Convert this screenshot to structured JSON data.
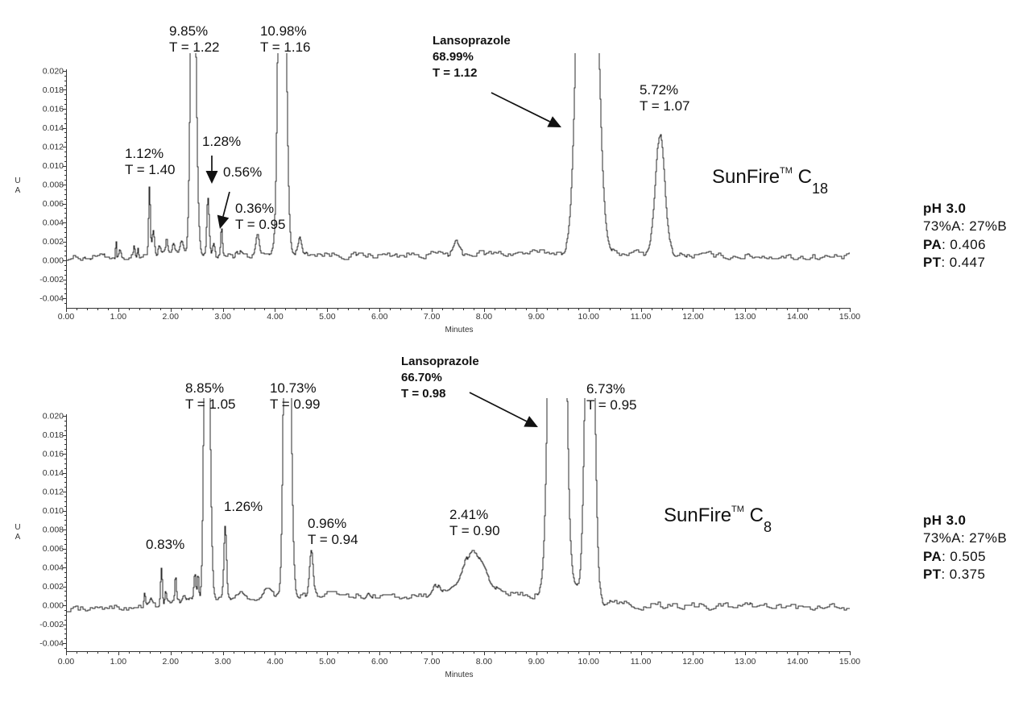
{
  "chart_data": [
    {
      "type": "line",
      "title": "SunFire™ C18",
      "title_parts": {
        "name": "SunFire",
        "tm": "TM",
        "phase": "C",
        "phase_sub": "18"
      },
      "conditions": [
        {
          "bold": "pH 3.0",
          "text": ""
        },
        {
          "bold": "",
          "text": "73%A: 27%B"
        },
        {
          "bold": "PA",
          "text": ": 0.406"
        },
        {
          "bold": "PT",
          "text": ": 0.447"
        }
      ],
      "xlabel": "Minutes",
      "ylabel": "AU",
      "ylabel_lines": [
        "U",
        "A"
      ],
      "xlim": [
        0,
        15
      ],
      "ylim": [
        -0.005,
        0.02
      ],
      "grid": false,
      "legend": null,
      "x_ticks": [
        0,
        1,
        2,
        3,
        4,
        5,
        6,
        7,
        8,
        9,
        10,
        11,
        12,
        13,
        14,
        15
      ],
      "x_tick_labels": [
        "0.00",
        "1.00",
        "2.00",
        "3.00",
        "4.00",
        "5.00",
        "6.00",
        "7.00",
        "8.00",
        "9.00",
        "10.00",
        "11.00",
        "12.00",
        "13.00",
        "14.00",
        "15.00"
      ],
      "y_ticks": [
        -0.004,
        -0.002,
        0.0,
        0.002,
        0.004,
        0.006,
        0.008,
        0.01,
        0.012,
        0.014,
        0.016,
        0.018,
        0.02
      ],
      "y_tick_labels": [
        "-0.004",
        "-0.002",
        "0.000",
        "0.002",
        "0.004",
        "0.006",
        "0.008",
        "0.010",
        "0.012",
        "0.014",
        "0.016",
        "0.018",
        "0.020"
      ],
      "labeled_peaks": [
        {
          "name": "",
          "rt": 1.6,
          "area_pct": "1.12%",
          "tailing": "1.40"
        },
        {
          "name": "",
          "rt": 2.42,
          "area_pct": "9.85%",
          "tailing": "1.22"
        },
        {
          "name": "",
          "rt": 2.71,
          "area_pct": "1.28%",
          "tailing": null
        },
        {
          "name": "",
          "rt": 2.97,
          "area_pct": "0.56%",
          "tailing": null
        },
        {
          "name": "",
          "rt": 3.66,
          "area_pct": "0.36%",
          "tailing": "0.95"
        },
        {
          "name": "",
          "rt": 4.12,
          "area_pct": "10.98%",
          "tailing": "1.16"
        },
        {
          "name": "Lansoprazole",
          "rt": 9.96,
          "area_pct": "68.99%",
          "tailing": "1.12"
        },
        {
          "name": "",
          "rt": 11.36,
          "area_pct": "5.72%",
          "tailing": "1.07"
        }
      ],
      "baseline": [
        [
          0,
          0.0003
        ],
        [
          0.9,
          0.0004
        ],
        [
          1.5,
          0.0004
        ],
        [
          2.2,
          0.0007
        ],
        [
          3.2,
          0.0004
        ],
        [
          3.8,
          0.0006
        ],
        [
          4.6,
          0.0008
        ],
        [
          5.5,
          0.0005
        ],
        [
          6.5,
          0.0006
        ],
        [
          8.0,
          0.0007
        ],
        [
          9.3,
          0.0008
        ],
        [
          10.5,
          0.0008
        ],
        [
          12.0,
          0.0005
        ],
        [
          15.0,
          0.0003
        ]
      ],
      "peaks": [
        {
          "t": 0.95,
          "h": 0.0024,
          "w": 0.008
        },
        {
          "t": 1.02,
          "h": 0.0006,
          "w": 0.02
        },
        {
          "t": 1.3,
          "h": 0.0012,
          "w": 0.012
        },
        {
          "t": 1.37,
          "h": 0.001,
          "w": 0.012
        },
        {
          "t": 1.59,
          "h": 0.0074,
          "w": 0.016
        },
        {
          "t": 1.66,
          "h": 0.0028,
          "w": 0.025
        },
        {
          "t": 1.78,
          "h": 0.0008,
          "w": 0.02
        },
        {
          "t": 1.92,
          "h": 0.0016,
          "w": 0.018
        },
        {
          "t": 2.05,
          "h": 0.0008,
          "w": 0.02
        },
        {
          "t": 2.21,
          "h": 0.0012,
          "w": 0.03
        },
        {
          "t": 2.42,
          "h": 0.04,
          "w": 0.042,
          "tail": 1.3
        },
        {
          "t": 2.71,
          "h": 0.0058,
          "w": 0.022
        },
        {
          "t": 2.82,
          "h": 0.0012,
          "w": 0.02
        },
        {
          "t": 2.97,
          "h": 0.003,
          "w": 0.016
        },
        {
          "t": 3.3,
          "h": 0.0005,
          "w": 0.05
        },
        {
          "t": 3.66,
          "h": 0.0022,
          "w": 0.03
        },
        {
          "t": 4.12,
          "h": 0.06,
          "w": 0.055,
          "tail": 1.2
        },
        {
          "t": 4.47,
          "h": 0.0016,
          "w": 0.03
        },
        {
          "t": 7.47,
          "h": 0.0011,
          "w": 0.05
        },
        {
          "t": 9.96,
          "h": 0.085,
          "w": 0.13,
          "tail": 1.1
        },
        {
          "t": 11.36,
          "h": 0.0127,
          "w": 0.085,
          "tail": 1.1
        }
      ],
      "annotations": [
        {
          "lines": [
            "9.85%",
            "T = 1.22"
          ],
          "x": 1.973,
          "y": 0.02502,
          "style": "normal"
        },
        {
          "lines": [
            "10.98%",
            "T = 1.16"
          ],
          "x": 3.715,
          "y": 0.02502,
          "style": "normal"
        },
        {
          "lines": [
            "Lansoprazole",
            "68.99%",
            "T = 1.12"
          ],
          "x": 7.014,
          "y": 0.024,
          "style": "bold"
        },
        {
          "lines": [
            "5.72%",
            "T = 1.07"
          ],
          "x": 10.976,
          "y": 0.01881,
          "style": "normal"
        },
        {
          "lines": [
            "1.12%",
            "T = 1.40"
          ],
          "x": 1.125,
          "y": 0.01209,
          "style": "normal"
        },
        {
          "lines": [
            "1.28%"
          ],
          "x": 2.605,
          "y": 0.01336,
          "style": "normal"
        },
        {
          "lines": [
            "0.56%"
          ],
          "x": 3.006,
          "y": 0.01013,
          "style": "normal"
        },
        {
          "lines": [
            "0.36%",
            "T = 0.95"
          ],
          "x": 3.237,
          "y": 0.0063,
          "style": "normal"
        }
      ],
      "arrows": [
        {
          "from": [
            8.139,
            0.0177
          ],
          "to": [
            9.481,
            0.01404
          ]
        },
        {
          "from": [
            2.79,
            0.01106
          ],
          "to": [
            2.79,
            0.00809
          ]
        },
        {
          "from": [
            3.129,
            0.00723
          ],
          "to": [
            2.944,
            0.00332
          ]
        }
      ]
    },
    {
      "type": "line",
      "title": "SunFire™ C8",
      "title_parts": {
        "name": "SunFire",
        "tm": "TM",
        "phase": "C",
        "phase_sub": "8"
      },
      "conditions": [
        {
          "bold": "pH 3.0",
          "text": ""
        },
        {
          "bold": "",
          "text": "73%A: 27%B"
        },
        {
          "bold": "PA",
          "text": ": 0.505"
        },
        {
          "bold": "PT",
          "text": ": 0.375"
        }
      ],
      "xlabel": "Minutes",
      "ylabel": "AU",
      "ylabel_lines": [
        "U",
        "A"
      ],
      "xlim": [
        0,
        15
      ],
      "ylim": [
        -0.005,
        0.02
      ],
      "grid": false,
      "legend": null,
      "x_ticks": [
        0,
        1,
        2,
        3,
        4,
        5,
        6,
        7,
        8,
        9,
        10,
        11,
        12,
        13,
        14,
        15
      ],
      "x_tick_labels": [
        "0.00",
        "1.00",
        "2.00",
        "3.00",
        "4.00",
        "5.00",
        "6.00",
        "7.00",
        "8.00",
        "9.00",
        "10.00",
        "11.00",
        "12.00",
        "13.00",
        "14.00",
        "15.00"
      ],
      "y_ticks": [
        -0.004,
        -0.002,
        0.0,
        0.002,
        0.004,
        0.006,
        0.008,
        0.01,
        0.012,
        0.014,
        0.016,
        0.018,
        0.02
      ],
      "y_tick_labels": [
        "-0.004",
        "-0.002",
        "0.000",
        "0.002",
        "0.004",
        "0.006",
        "0.008",
        "0.010",
        "0.012",
        "0.014",
        "0.016",
        "0.018",
        "0.020"
      ],
      "labeled_peaks": [
        {
          "name": "",
          "rt": 1.82,
          "area_pct": "0.83%",
          "tailing": null
        },
        {
          "name": "",
          "rt": 2.68,
          "area_pct": "8.85%",
          "tailing": "1.05"
        },
        {
          "name": "",
          "rt": 3.04,
          "area_pct": "1.26%",
          "tailing": null
        },
        {
          "name": "",
          "rt": 4.22,
          "area_pct": "10.73%",
          "tailing": "0.99"
        },
        {
          "name": "",
          "rt": 4.69,
          "area_pct": "0.96%",
          "tailing": "0.94"
        },
        {
          "name": "",
          "rt": 7.8,
          "area_pct": "2.41%",
          "tailing": "0.90"
        },
        {
          "name": "Lansoprazole",
          "rt": 9.39,
          "area_pct": "66.70%",
          "tailing": "0.98"
        },
        {
          "name": "",
          "rt": 10.02,
          "area_pct": "6.73%",
          "tailing": "0.95"
        }
      ],
      "baseline": [
        [
          0,
          -0.0004
        ],
        [
          1.3,
          -0.0003
        ],
        [
          1.7,
          0.0
        ],
        [
          2.3,
          0.0004
        ],
        [
          3.2,
          0.0008
        ],
        [
          4.0,
          0.001
        ],
        [
          5.0,
          0.0011
        ],
        [
          6.0,
          0.001
        ],
        [
          6.8,
          0.0009
        ],
        [
          7.2,
          0.0012
        ],
        [
          8.5,
          0.0011
        ],
        [
          9.0,
          0.0011
        ],
        [
          9.75,
          0.0016
        ],
        [
          10.3,
          0.0003
        ],
        [
          11.0,
          0.0
        ],
        [
          15.0,
          -0.0003
        ]
      ],
      "peaks": [
        {
          "t": 1.5,
          "h": 0.0013,
          "w": 0.012
        },
        {
          "t": 1.62,
          "h": 0.0005,
          "w": 0.02
        },
        {
          "t": 1.82,
          "h": 0.0042,
          "w": 0.018
        },
        {
          "t": 1.9,
          "h": 0.0014,
          "w": 0.02
        },
        {
          "t": 2.09,
          "h": 0.0025,
          "w": 0.014
        },
        {
          "t": 2.25,
          "h": 0.0008,
          "w": 0.03
        },
        {
          "t": 2.46,
          "h": 0.003,
          "w": 0.018
        },
        {
          "t": 2.52,
          "h": 0.003,
          "w": 0.015
        },
        {
          "t": 2.68,
          "h": 0.05,
          "w": 0.04,
          "tail": 1.3
        },
        {
          "t": 3.04,
          "h": 0.0078,
          "w": 0.025
        },
        {
          "t": 3.35,
          "h": 0.0004,
          "w": 0.05
        },
        {
          "t": 3.85,
          "h": 0.0006,
          "w": 0.06
        },
        {
          "t": 4.22,
          "h": 0.055,
          "w": 0.05,
          "tail": 1.2
        },
        {
          "t": 4.69,
          "h": 0.0048,
          "w": 0.035
        },
        {
          "t": 5.78,
          "h": 0.0006,
          "w": 0.03
        },
        {
          "t": 7.08,
          "h": 0.0011,
          "w": 0.07
        },
        {
          "t": 7.8,
          "h": 0.0044,
          "w": 0.22
        },
        {
          "t": 9.39,
          "h": 0.12,
          "w": 0.1,
          "tail": 1.05
        },
        {
          "t": 10.02,
          "h": 0.05,
          "w": 0.075
        }
      ],
      "annotations": [
        {
          "lines": [
            "8.85%",
            "T = 1.05"
          ],
          "x": 2.281,
          "y": 0.02374,
          "style": "normal"
        },
        {
          "lines": [
            "10.73%",
            "T = 0.99"
          ],
          "x": 3.9,
          "y": 0.02374,
          "style": "normal"
        },
        {
          "lines": [
            "Lansoprazole",
            "66.70%",
            "T = 0.98"
          ],
          "x": 6.413,
          "y": 0.02655,
          "style": "bold"
        },
        {
          "lines": [
            "6.73%",
            "T = 0.95"
          ],
          "x": 9.958,
          "y": 0.02366,
          "style": "normal"
        },
        {
          "lines": [
            "1.26%"
          ],
          "x": 3.021,
          "y": 0.01123,
          "style": "normal"
        },
        {
          "lines": [
            "0.83%"
          ],
          "x": 1.526,
          "y": 0.00723,
          "style": "normal"
        },
        {
          "lines": [
            "0.96%",
            "T = 0.94"
          ],
          "x": 4.625,
          "y": 0.00945,
          "style": "normal"
        },
        {
          "lines": [
            "2.41%",
            "T = 0.90"
          ],
          "x": 7.338,
          "y": 0.01038,
          "style": "normal"
        }
      ],
      "arrows": [
        {
          "from": [
            7.723,
            0.02247
          ],
          "to": [
            9.033,
            0.01881
          ]
        }
      ]
    }
  ]
}
